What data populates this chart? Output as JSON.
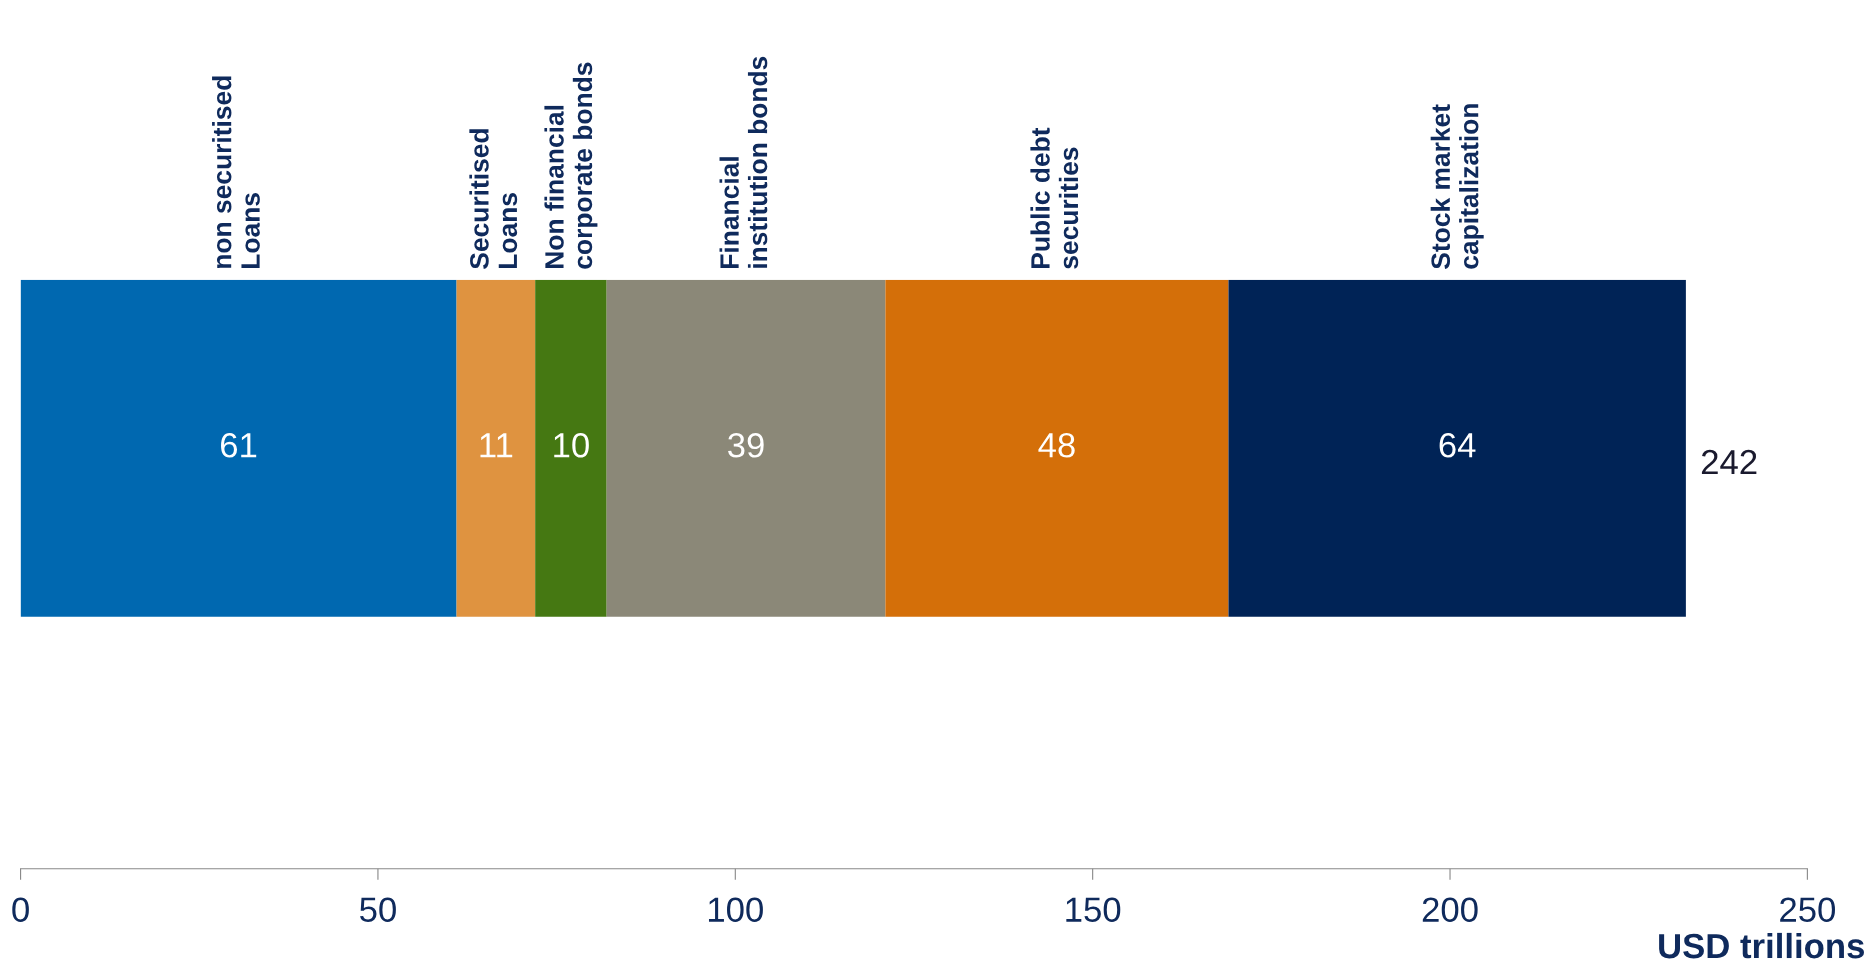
{
  "chart_data": {
    "type": "bar",
    "orientation": "horizontal",
    "stacked": true,
    "categories": [
      null
    ],
    "series": [
      {
        "name": "non securitised\nLoans",
        "color": "#0068b0",
        "values": [
          61
        ]
      },
      {
        "name": "Securitised\nLoans",
        "color": "#df9340",
        "values": [
          11
        ]
      },
      {
        "name": "Non financial\ncorporate bonds",
        "color": "#457812",
        "values": [
          10
        ]
      },
      {
        "name": "Financial\ninstitution bonds",
        "color": "#8b8878",
        "values": [
          39
        ]
      },
      {
        "name": "Public debt\nsecurities",
        "color": "#d46f09",
        "values": [
          48
        ]
      },
      {
        "name": "Stock market\ncapitalization",
        "color": "#002356",
        "values": [
          64
        ]
      }
    ],
    "data_labels": true,
    "annotations": [
      "242"
    ],
    "xlabel": "USD trillions",
    "xlim": [
      0,
      250
    ],
    "xticks": [
      0,
      50,
      100,
      150,
      200,
      250
    ],
    "tick_labels": "x",
    "grid": false
  }
}
